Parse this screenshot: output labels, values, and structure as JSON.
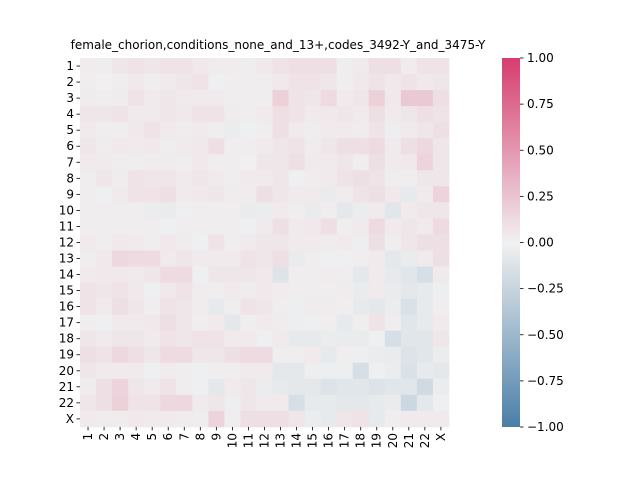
{
  "chart_data": {
    "type": "heatmap",
    "title": "female_chorion,conditions_none_and_13+,codes_3492-Y_and_3475-Y",
    "xlabel": "",
    "ylabel": "",
    "x_categories": [
      "1",
      "2",
      "3",
      "4",
      "5",
      "6",
      "7",
      "8",
      "9",
      "10",
      "11",
      "12",
      "13",
      "14",
      "15",
      "16",
      "17",
      "18",
      "19",
      "20",
      "21",
      "22",
      "X"
    ],
    "y_categories": [
      "1",
      "2",
      "3",
      "4",
      "5",
      "6",
      "7",
      "8",
      "9",
      "10",
      "11",
      "12",
      "13",
      "14",
      "15",
      "16",
      "17",
      "18",
      "19",
      "20",
      "21",
      "22",
      "X"
    ],
    "colorbar": {
      "range": [
        -1.0,
        1.0
      ],
      "ticks": [
        1.0,
        0.75,
        0.5,
        0.25,
        0.0,
        -0.25,
        -0.5,
        -0.75,
        -1.0
      ],
      "tick_labels": [
        "1.00",
        "0.75",
        "0.50",
        "0.25",
        "0.00",
        "−0.25",
        "−0.50",
        "−0.75",
        "−1.00"
      ],
      "colors": {
        "low": "#4a7fa8",
        "mid": "#f1f1f1",
        "high": "#d63d6e"
      }
    },
    "values": [
      [
        0.03,
        0.02,
        0.06,
        0.08,
        0.06,
        0.08,
        0.08,
        0.05,
        0.03,
        0.03,
        0.02,
        0.05,
        0.08,
        0.1,
        0.1,
        0.1,
        0.02,
        0.04,
        0.1,
        0.1,
        0.03,
        0.08,
        0.08
      ],
      [
        0.02,
        0.01,
        0.02,
        0.05,
        0.02,
        0.04,
        0.06,
        0.08,
        -0.02,
        0.02,
        0.02,
        0.02,
        0.05,
        0.08,
        0.08,
        0.06,
        0.02,
        0.05,
        0.08,
        0.05,
        0.08,
        0.05,
        0.06
      ],
      [
        0.03,
        0.02,
        0.03,
        0.08,
        0.04,
        0.06,
        0.04,
        0.04,
        0.04,
        0.02,
        0.02,
        0.02,
        0.18,
        0.08,
        0.06,
        0.12,
        0.04,
        0.06,
        0.18,
        0.05,
        0.22,
        0.22,
        0.1
      ],
      [
        0.06,
        0.06,
        0.08,
        0.04,
        0.04,
        0.06,
        0.05,
        0.08,
        0.08,
        0.03,
        0.02,
        0.04,
        0.1,
        0.08,
        0.04,
        0.05,
        0.06,
        0.04,
        0.1,
        0.04,
        0.06,
        0.1,
        0.08
      ],
      [
        0.04,
        0.02,
        0.02,
        0.05,
        0.08,
        0.04,
        0.03,
        0.04,
        0.02,
        -0.04,
        -0.02,
        0.02,
        0.1,
        0.04,
        0.02,
        0.04,
        0.04,
        0.03,
        0.08,
        -0.03,
        0.04,
        0.06,
        0.1
      ],
      [
        0.06,
        0.03,
        0.05,
        0.04,
        0.05,
        0.02,
        0.04,
        0.05,
        0.1,
        0.02,
        0.02,
        0.04,
        0.06,
        0.08,
        0.03,
        0.06,
        0.1,
        0.1,
        0.12,
        0.04,
        0.1,
        0.14,
        0.06
      ],
      [
        0.04,
        0.04,
        0.02,
        0.02,
        0.03,
        0.03,
        0.02,
        0.05,
        0.02,
        0.02,
        0.01,
        0.06,
        0.06,
        0.1,
        0.04,
        0.04,
        0.06,
        0.02,
        0.1,
        0.04,
        0.05,
        0.16,
        0.06
      ],
      [
        0.02,
        0.06,
        0.03,
        0.08,
        0.06,
        0.06,
        0.04,
        0.06,
        0.04,
        0.02,
        0.04,
        0.04,
        0.06,
        -0.02,
        0.03,
        0.04,
        0.08,
        0.1,
        0.08,
        0.02,
        0.02,
        0.06,
        0.06
      ],
      [
        0.02,
        -0.02,
        0.04,
        0.08,
        0.08,
        0.1,
        0.04,
        0.05,
        0.06,
        0.03,
        0.03,
        0.1,
        0.06,
        0.04,
        0.04,
        -0.05,
        0.03,
        0.08,
        0.1,
        0.05,
        -0.06,
        0.04,
        0.16
      ],
      [
        0.02,
        0.02,
        0.02,
        0.02,
        -0.04,
        -0.05,
        -0.02,
        0.02,
        0.02,
        0.02,
        -0.05,
        -0.04,
        0.04,
        0.02,
        -0.05,
        0.02,
        -0.08,
        -0.04,
        0.04,
        -0.1,
        0.04,
        0.06,
        0.06
      ],
      [
        0.02,
        0.02,
        0.02,
        0.02,
        0.02,
        -0.02,
        0.02,
        0.02,
        0.02,
        0.02,
        -0.02,
        0.04,
        0.1,
        0.04,
        0.05,
        0.1,
        0.02,
        0.04,
        0.12,
        0.04,
        0.06,
        0.04,
        0.12
      ],
      [
        0.04,
        0.02,
        0.05,
        0.04,
        0.02,
        0.05,
        0.03,
        -0.02,
        0.08,
        0.02,
        0.04,
        0.06,
        0.06,
        0.04,
        0.04,
        0.03,
        0.04,
        -0.03,
        0.1,
        0.02,
        0.06,
        0.1,
        0.1
      ],
      [
        0.02,
        0.05,
        0.14,
        0.12,
        0.12,
        0.04,
        0.06,
        0.04,
        0.04,
        0.04,
        0.08,
        0.06,
        0.1,
        -0.05,
        0.02,
        -0.02,
        -0.02,
        0.02,
        0.04,
        -0.08,
        -0.05,
        0.04,
        0.1
      ],
      [
        0.04,
        0.05,
        0.05,
        0.04,
        0.06,
        0.12,
        0.12,
        -0.02,
        0.06,
        0.06,
        0.06,
        0.05,
        -0.12,
        0.02,
        0.02,
        0.03,
        0.02,
        -0.08,
        0.04,
        -0.06,
        -0.1,
        -0.16,
        0.04
      ],
      [
        0.08,
        0.06,
        0.08,
        0.05,
        -0.02,
        0.05,
        0.08,
        0.03,
        0.02,
        0.04,
        0.03,
        0.05,
        0.03,
        0.02,
        0.02,
        0.02,
        0.03,
        -0.05,
        0.04,
        -0.05,
        -0.08,
        -0.06,
        -0.03
      ],
      [
        0.08,
        0.04,
        0.1,
        0.06,
        0.02,
        0.08,
        0.06,
        0.03,
        -0.06,
        0.02,
        0.08,
        0.06,
        0.02,
        -0.03,
        0.03,
        0.03,
        0.02,
        -0.06,
        -0.08,
        -0.04,
        -0.14,
        -0.06,
        0.02
      ],
      [
        0.02,
        -0.02,
        0.04,
        0.04,
        0.05,
        0.1,
        0.06,
        0.02,
        0.04,
        -0.08,
        0.02,
        0.04,
        0.03,
        -0.03,
        -0.02,
        0.02,
        -0.06,
        0.02,
        0.08,
        0.02,
        -0.1,
        -0.06,
        0.04
      ],
      [
        0.06,
        0.04,
        0.06,
        0.06,
        0.04,
        0.08,
        0.06,
        0.08,
        0.08,
        0.04,
        0.04,
        -0.02,
        0.04,
        -0.06,
        -0.06,
        -0.04,
        -0.05,
        -0.05,
        -0.02,
        -0.16,
        -0.1,
        -0.1,
        0.06
      ],
      [
        0.1,
        0.08,
        0.14,
        0.1,
        0.06,
        0.12,
        0.12,
        0.06,
        0.06,
        0.1,
        0.12,
        0.12,
        0.02,
        0.02,
        0.04,
        -0.06,
        0.02,
        -0.03,
        -0.04,
        -0.05,
        -0.12,
        -0.1,
        -0.04
      ],
      [
        0.06,
        0.04,
        0.04,
        0.04,
        -0.02,
        0.03,
        0.02,
        -0.02,
        0.02,
        0.02,
        0.04,
        0.04,
        -0.08,
        -0.08,
        -0.03,
        -0.03,
        -0.03,
        -0.16,
        -0.02,
        -0.04,
        -0.14,
        -0.06,
        -0.08
      ],
      [
        0.03,
        0.1,
        0.16,
        0.06,
        0.04,
        0.08,
        0.02,
        -0.02,
        -0.08,
        0.04,
        0.06,
        -0.04,
        -0.06,
        -0.08,
        -0.08,
        -0.12,
        -0.1,
        -0.1,
        -0.12,
        -0.1,
        -0.1,
        -0.2,
        -0.04
      ],
      [
        0.06,
        0.1,
        0.18,
        0.08,
        0.08,
        0.14,
        0.14,
        0.04,
        0.06,
        -0.03,
        0.06,
        0.04,
        0.04,
        -0.16,
        -0.06,
        -0.06,
        -0.08,
        -0.08,
        -0.06,
        -0.05,
        -0.22,
        -0.08,
        -0.02
      ],
      [
        0.04,
        0.03,
        0.03,
        0.05,
        0.04,
        0.04,
        0.03,
        0.02,
        0.16,
        0.02,
        0.1,
        0.1,
        0.1,
        0.06,
        -0.04,
        -0.06,
        0.06,
        0.08,
        -0.06,
        0.02,
        0.04,
        0.04,
        0.04
      ]
    ]
  }
}
